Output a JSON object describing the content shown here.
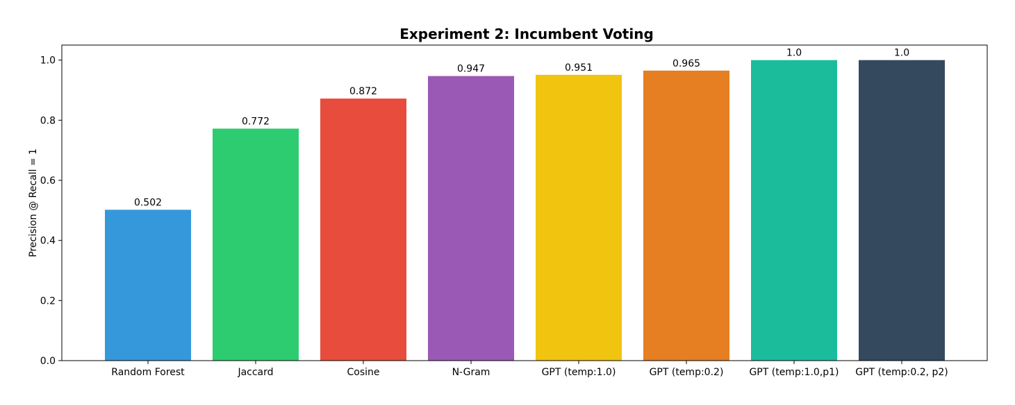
{
  "chart_data": {
    "type": "bar",
    "title": "Experiment 2: Incumbent Voting",
    "xlabel": "",
    "ylabel": "Precision @ Recall = 1",
    "ylim": [
      0,
      1.05
    ],
    "yticks": [
      "0.0",
      "0.2",
      "0.4",
      "0.6",
      "0.8",
      "1.0"
    ],
    "grid": false,
    "categories": [
      "Random Forest",
      "Jaccard",
      "Cosine",
      "N-Gram",
      "GPT (temp:1.0)",
      "GPT (temp:0.2)",
      "GPT (temp:1.0,p1)",
      "GPT (temp:0.2, p2)"
    ],
    "values": [
      0.502,
      0.772,
      0.872,
      0.947,
      0.951,
      0.965,
      1.0,
      1.0
    ],
    "value_labels": [
      "0.502",
      "0.772",
      "0.872",
      "0.947",
      "0.951",
      "0.965",
      "1.0",
      "1.0"
    ],
    "colors": [
      "#3498db",
      "#2ecc71",
      "#e74c3c",
      "#9b59b6",
      "#f1c40f",
      "#e67e22",
      "#1abc9c",
      "#34495e"
    ]
  }
}
